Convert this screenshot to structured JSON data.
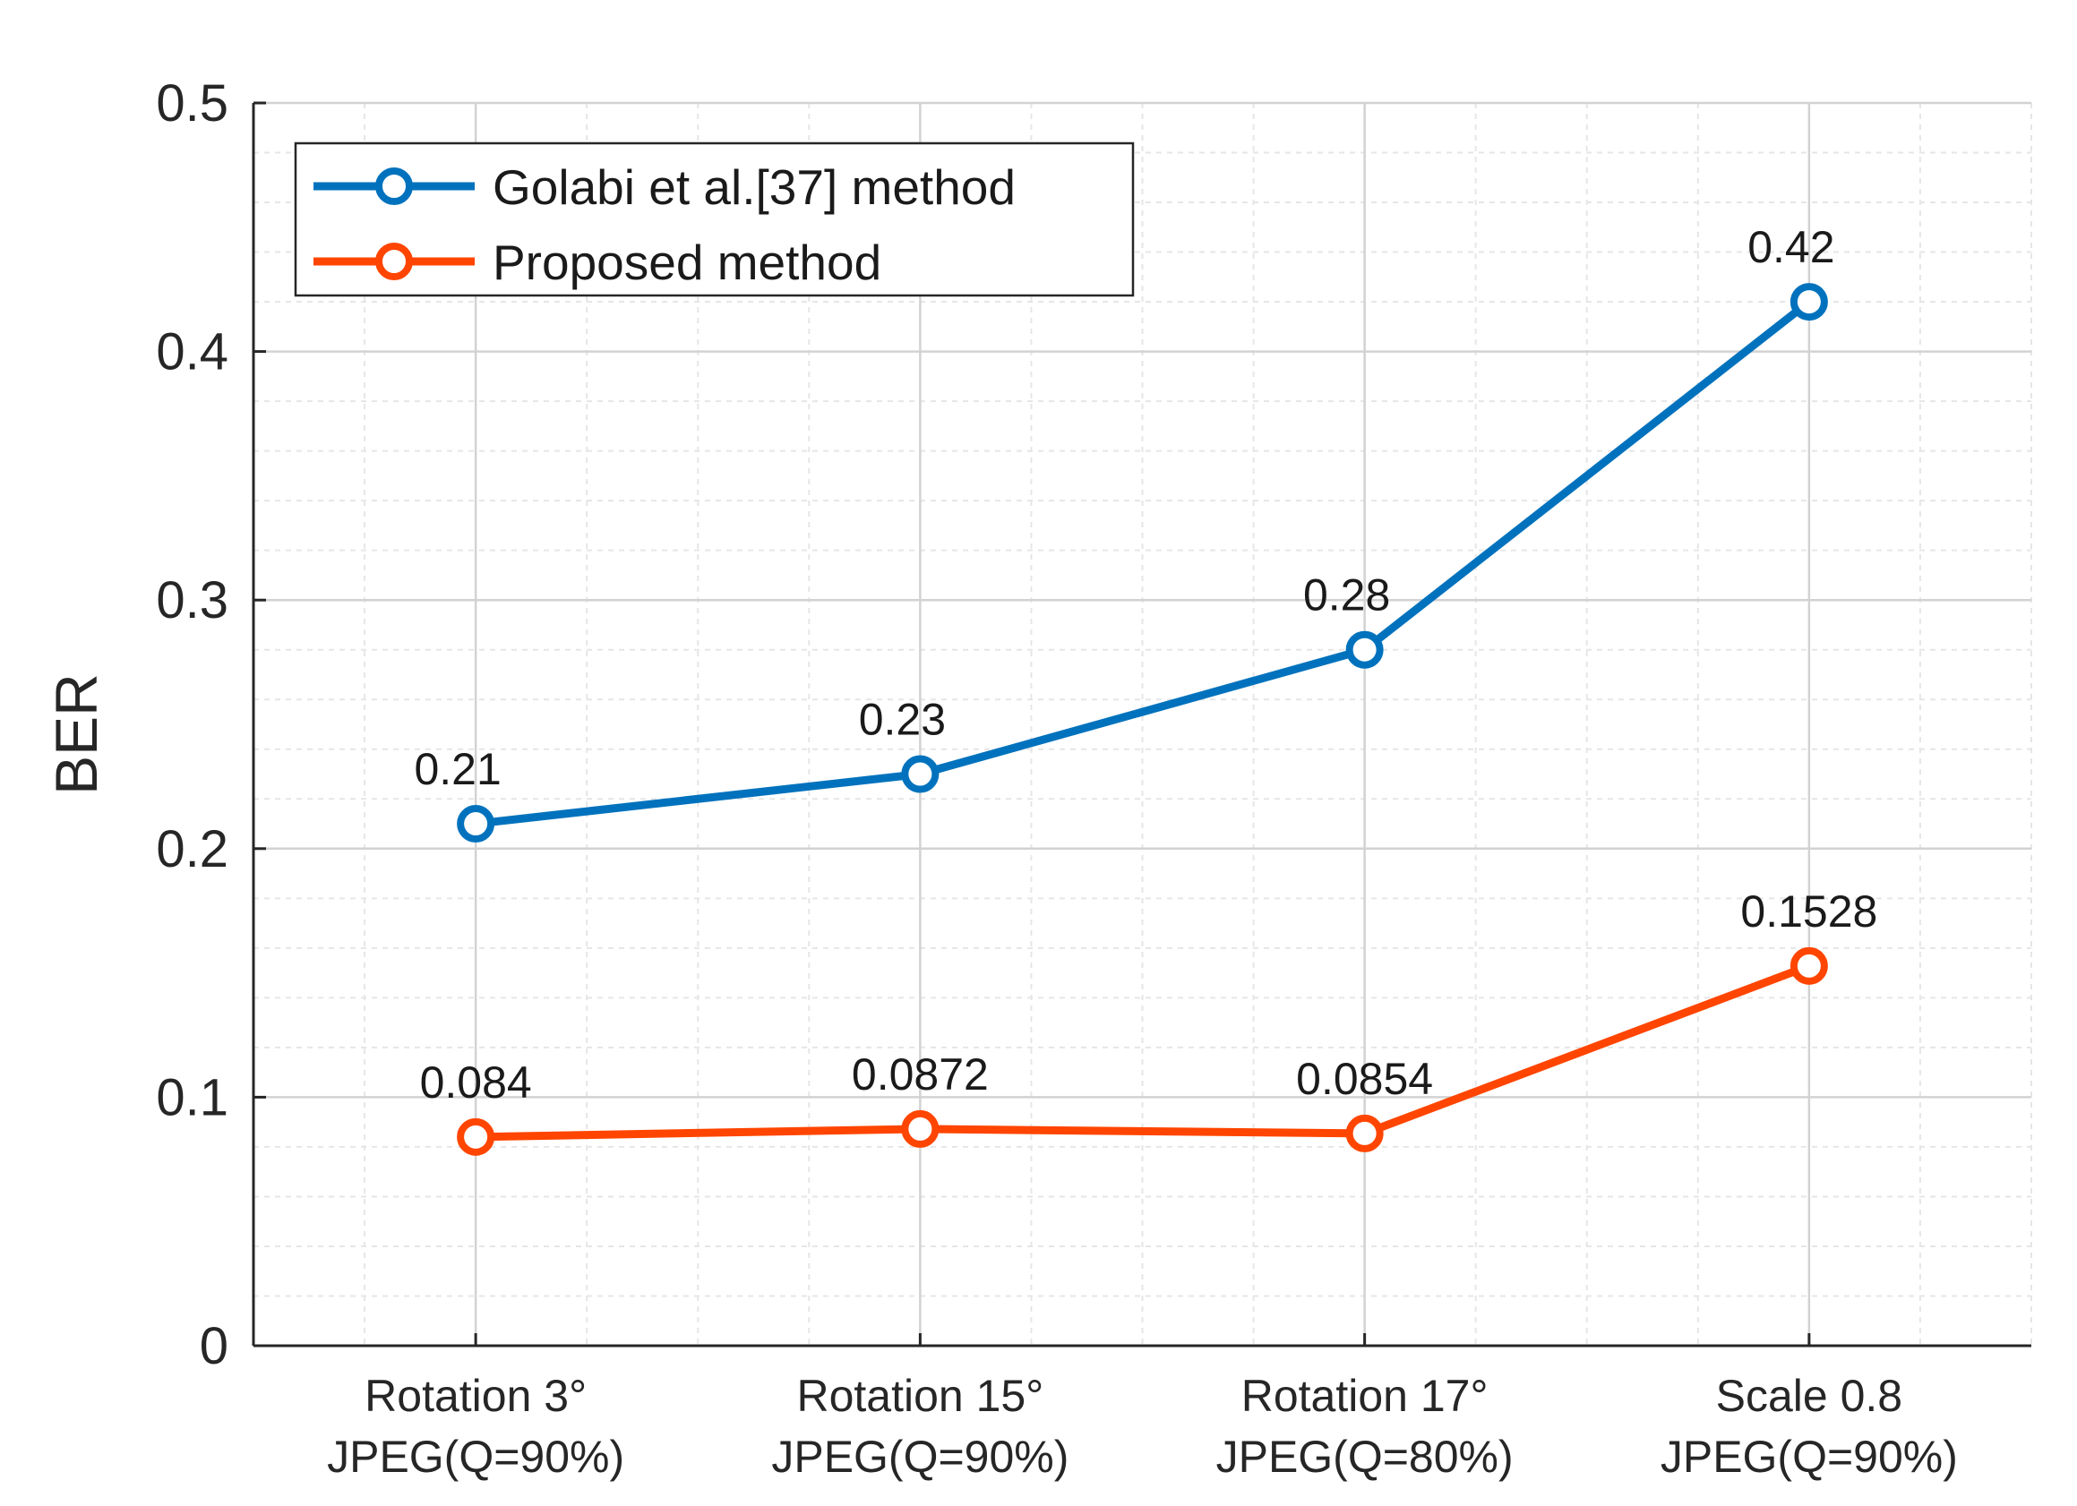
{
  "chart_data": {
    "type": "line",
    "title": "",
    "xlabel": "",
    "ylabel": "BER",
    "ylim": [
      0,
      0.5
    ],
    "yticks": [
      "0",
      "0.1",
      "0.2",
      "0.3",
      "0.4",
      "0.5"
    ],
    "grid": true,
    "minor_grid": true,
    "legend_position": "top-left",
    "categories": [
      [
        "Rotation 3°",
        "JPEG(Q=90%)"
      ],
      [
        "Rotation 15°",
        "JPEG(Q=90%)"
      ],
      [
        "Rotation 17°",
        "JPEG(Q=80%)"
      ],
      [
        "Scale 0.8",
        "JPEG(Q=90%)"
      ]
    ],
    "series": [
      {
        "name": "Golabi et al.[37] method",
        "color": "#0072BD",
        "values": [
          0.21,
          0.23,
          0.28,
          0.42
        ],
        "labels": [
          "0.21",
          "0.23",
          "0.28",
          "0.42"
        ]
      },
      {
        "name": "Proposed method",
        "color": "#FF4500",
        "values": [
          0.084,
          0.0872,
          0.0854,
          0.1528
        ],
        "labels": [
          "0.084",
          "0.0872",
          "0.0854",
          "0.1528"
        ]
      }
    ]
  }
}
